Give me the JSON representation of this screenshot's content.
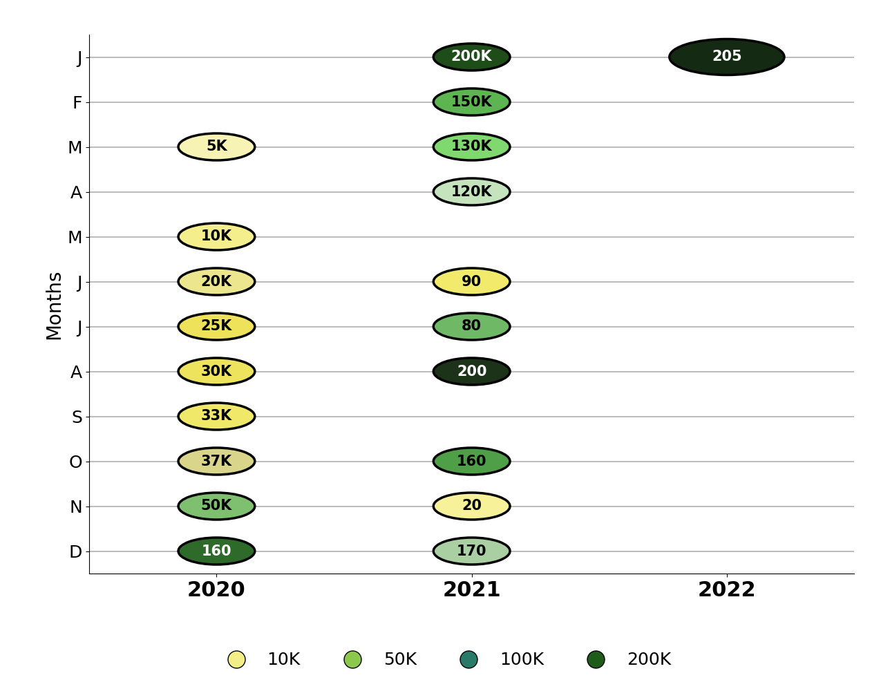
{
  "chart_data": {
    "type": "bubble",
    "categories": [
      "2020",
      "2021",
      "2022"
    ],
    "y_categories": [
      "J",
      "F",
      "M",
      "A",
      "M",
      "J",
      "J",
      "A",
      "S",
      "O",
      "N",
      "D"
    ],
    "y_label": "Months",
    "grid": true,
    "legend": "lower center",
    "legend_entries": [
      {
        "label": "10K",
        "color": "#f3ee86"
      },
      {
        "label": "50K",
        "color": "#8cc84b"
      },
      {
        "label": "100K",
        "color": "#2a7a6a"
      },
      {
        "label": "200K",
        "color": "#1f5c1a"
      }
    ],
    "points": [
      {
        "year": 0,
        "month": 2,
        "label": "5K",
        "color": "#f6f3b5"
      },
      {
        "year": 0,
        "month": 4,
        "label": "10K",
        "color": "#f5ee8c"
      },
      {
        "year": 0,
        "month": 5,
        "label": "20K",
        "color": "#ece68e"
      },
      {
        "year": 0,
        "month": 6,
        "label": "25K",
        "color": "#eee25a"
      },
      {
        "year": 0,
        "month": 7,
        "label": "30K",
        "color": "#eee35c"
      },
      {
        "year": 0,
        "month": 8,
        "label": "33K",
        "color": "#f0e868"
      },
      {
        "year": 0,
        "month": 9,
        "label": "37K",
        "color": "#d9d58a"
      },
      {
        "year": 0,
        "month": 10,
        "label": "50K",
        "color": "#7fbf70"
      },
      {
        "year": 0,
        "month": 11,
        "label": "160",
        "color": "#2e6b2a"
      },
      {
        "year": 1,
        "month": 0,
        "label": "200K",
        "color": "#1f4d1a"
      },
      {
        "year": 1,
        "month": 1,
        "label": "150K",
        "color": "#5db552"
      },
      {
        "year": 1,
        "month": 2,
        "label": "130K",
        "color": "#7fd96e"
      },
      {
        "year": 1,
        "month": 3,
        "label": "120K",
        "color": "#c5e4bd"
      },
      {
        "year": 1,
        "month": 5,
        "label": "90",
        "color": "#f2ea6a"
      },
      {
        "year": 1,
        "month": 6,
        "label": "80",
        "color": "#6fb865"
      },
      {
        "year": 1,
        "month": 7,
        "label": "200",
        "color": "#1c3319"
      },
      {
        "year": 1,
        "month": 9,
        "label": "160",
        "color": "#4f9e48"
      },
      {
        "year": 1,
        "month": 10,
        "label": "20",
        "color": "#f7f29a"
      },
      {
        "year": 1,
        "month": 11,
        "label": "170",
        "color": "#a9cfa2"
      },
      {
        "year": 2,
        "month": 0,
        "label": "205",
        "color": "#142a12"
      }
    ]
  }
}
